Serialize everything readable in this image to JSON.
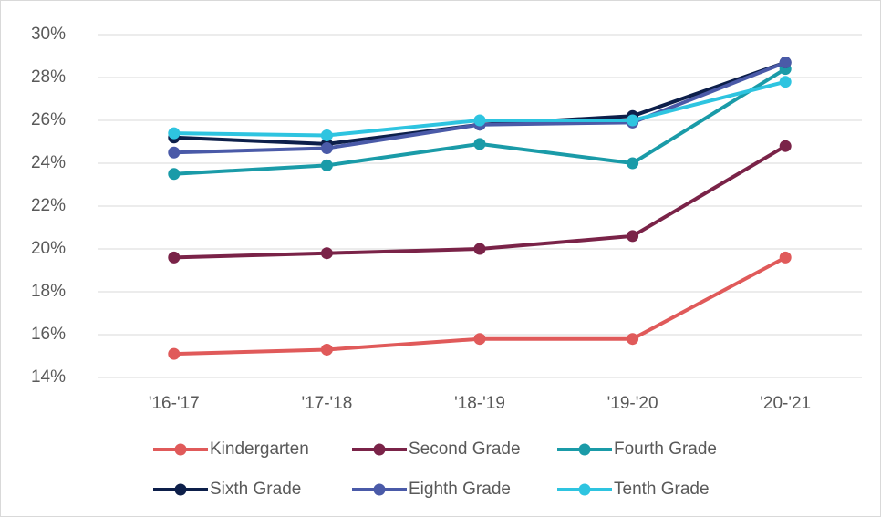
{
  "chart_data": {
    "type": "line",
    "categories": [
      "'16-'17",
      "'17-'18",
      "'18-'19",
      "'19-'20",
      "'20-'21"
    ],
    "series": [
      {
        "name": "Kindergarten",
        "color": "#e05a5a",
        "values": [
          15.1,
          15.3,
          15.8,
          15.8,
          19.6
        ]
      },
      {
        "name": "Second Grade",
        "color": "#7a2348",
        "values": [
          19.6,
          19.8,
          20.0,
          20.6,
          24.8
        ]
      },
      {
        "name": "Fourth Grade",
        "color": "#1a9ba8",
        "values": [
          23.5,
          23.9,
          24.9,
          24.0,
          28.4
        ]
      },
      {
        "name": "Sixth Grade",
        "color": "#0d1f4a",
        "values": [
          25.2,
          24.9,
          25.8,
          26.2,
          28.7
        ]
      },
      {
        "name": "Eighth Grade",
        "color": "#4a5aa8",
        "values": [
          24.5,
          24.7,
          25.8,
          25.9,
          28.7
        ]
      },
      {
        "name": "Tenth Grade",
        "color": "#2ec4e0",
        "values": [
          25.4,
          25.3,
          26.0,
          26.0,
          27.8
        ]
      }
    ],
    "ylim": [
      14,
      30
    ],
    "yticks": [
      {
        "value": 14,
        "label": "14%"
      },
      {
        "value": 16,
        "label": "16%"
      },
      {
        "value": 18,
        "label": "18%"
      },
      {
        "value": 20,
        "label": "20%"
      },
      {
        "value": 22,
        "label": "22%"
      },
      {
        "value": 24,
        "label": "24%"
      },
      {
        "value": 26,
        "label": "26%"
      },
      {
        "value": 28,
        "label": "28%"
      },
      {
        "value": 30,
        "label": "30%"
      }
    ],
    "grid": true,
    "legend": "bottom"
  }
}
